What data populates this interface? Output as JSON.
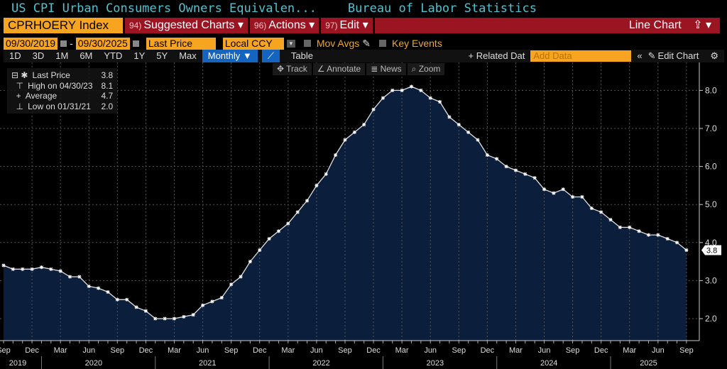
{
  "header": {
    "title": "US CPI Urban Consumers Owners Equivalen...",
    "source": "Bureau of Labor Statistics"
  },
  "toolbar": {
    "ticker": "CPRHOERY Index",
    "suggested": {
      "num": "94)",
      "label": "Suggested Charts ▾"
    },
    "actions": {
      "num": "96)",
      "label": "Actions ▾"
    },
    "edit": {
      "num": "97)",
      "label": "Edit ▾"
    },
    "chart_type": "Line Chart",
    "share_icon": "share-icon"
  },
  "controls": {
    "start_date": "09/30/2019",
    "end_date": "09/30/2025",
    "field": "Last Price",
    "currency": "Local CCY",
    "mov_avgs": "Mov Avgs",
    "key_events": "Key Events"
  },
  "periods": [
    "1D",
    "3D",
    "1M",
    "6M",
    "YTD",
    "1Y",
    "5Y",
    "Max"
  ],
  "frequency": "Monthly ▼",
  "table": "Table",
  "related": "+ Related Dat",
  "add_data_placeholder": "Add Data",
  "edit_chart": "Edit Chart",
  "tools": [
    "Track",
    "Annotate",
    "News",
    "Zoom"
  ],
  "legend": [
    {
      "label": "Last Price",
      "value": "3.8"
    },
    {
      "label": "High on 04/30/23",
      "value": "8.1"
    },
    {
      "label": "Average",
      "value": "4.7"
    },
    {
      "label": "Low on 01/31/21",
      "value": "2.0"
    }
  ],
  "chart_data": {
    "type": "area",
    "start": "2019-09",
    "frequency": "monthly",
    "values": [
      3.4,
      3.3,
      3.3,
      3.3,
      3.35,
      3.3,
      3.25,
      3.1,
      3.1,
      2.85,
      2.8,
      2.7,
      2.5,
      2.5,
      2.3,
      2.2,
      2.0,
      2.0,
      2.0,
      2.05,
      2.1,
      2.35,
      2.45,
      2.55,
      2.9,
      3.1,
      3.5,
      3.8,
      4.1,
      4.3,
      4.5,
      4.8,
      5.1,
      5.5,
      5.8,
      6.3,
      6.7,
      6.9,
      7.1,
      7.5,
      7.8,
      8.0,
      8.0,
      8.1,
      8.0,
      7.8,
      7.7,
      7.3,
      7.1,
      6.9,
      6.7,
      6.3,
      6.2,
      6.0,
      5.9,
      5.8,
      5.7,
      5.4,
      5.3,
      5.4,
      5.2,
      5.2,
      4.9,
      4.8,
      4.6,
      4.4,
      4.4,
      4.3,
      4.2,
      4.2,
      4.1,
      4.0,
      3.8
    ],
    "yticks": [
      "2.0",
      "3.0",
      "4.0",
      "5.0",
      "6.0",
      "7.0",
      "8.0"
    ],
    "ylim": [
      1.4,
      8.7
    ],
    "month_ticks": [
      "Dec",
      "Mar",
      "Jun",
      "Sep"
    ],
    "years": [
      "2019",
      "2020",
      "2021",
      "2022",
      "2023",
      "2024",
      "2025"
    ],
    "last_label": "3.8",
    "grid": true,
    "colors": {
      "fill": "#0b1f3d",
      "line": "#e0e0e0",
      "text": "#dddddd"
    }
  }
}
